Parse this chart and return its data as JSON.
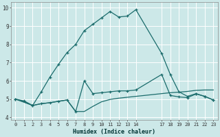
{
  "xlabel": "Humidex (Indice chaleur)",
  "bg_color": "#cce8e8",
  "grid_color": "#ffffff",
  "line_color": "#1a6b6b",
  "xlim": [
    -0.5,
    23.5
  ],
  "ylim": [
    3.85,
    10.3
  ],
  "x_ticks": [
    0,
    1,
    2,
    3,
    4,
    5,
    6,
    7,
    8,
    9,
    10,
    11,
    12,
    13,
    14,
    17,
    18,
    19,
    20,
    21,
    22,
    23
  ],
  "yticks": [
    4,
    5,
    6,
    7,
    8,
    9,
    10
  ],
  "series1_x": [
    0,
    1,
    2,
    3,
    4,
    5,
    6,
    7,
    8,
    9,
    10,
    11,
    12,
    13,
    14,
    17,
    18,
    19,
    20,
    21,
    22,
    23
  ],
  "series1_y": [
    5.0,
    4.9,
    4.65,
    5.4,
    6.2,
    6.9,
    7.55,
    8.0,
    8.75,
    9.1,
    9.45,
    9.8,
    9.5,
    9.55,
    9.9,
    7.5,
    6.35,
    5.4,
    5.15,
    5.3,
    5.15,
    4.95
  ],
  "series2_x": [
    0,
    1,
    2,
    3,
    4,
    5,
    6,
    7,
    8,
    9,
    10,
    11,
    12,
    13,
    14,
    17,
    18,
    19,
    20,
    21,
    22,
    23
  ],
  "series2_y": [
    5.0,
    4.85,
    4.65,
    4.75,
    4.8,
    4.88,
    4.95,
    4.32,
    4.32,
    4.6,
    4.85,
    4.98,
    5.05,
    5.1,
    5.15,
    5.3,
    5.35,
    5.38,
    5.42,
    5.48,
    5.5,
    5.5
  ],
  "series3_x": [
    0,
    2,
    3,
    4,
    5,
    6,
    7,
    8,
    9,
    10,
    11,
    12,
    13,
    14,
    17,
    18,
    19,
    20,
    21,
    22,
    23
  ],
  "series3_y": [
    5.0,
    4.65,
    4.75,
    4.8,
    4.88,
    4.95,
    4.32,
    6.0,
    5.3,
    5.35,
    5.4,
    5.45,
    5.45,
    5.5,
    6.35,
    5.2,
    5.12,
    5.08,
    5.28,
    5.15,
    4.95
  ]
}
